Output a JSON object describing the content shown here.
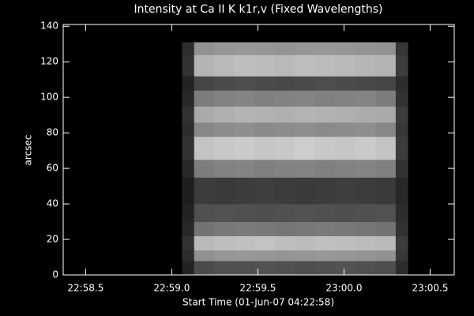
{
  "chart_data": {
    "type": "heatmap",
    "title": "Intensity at Ca II K k1r,v (Fixed Wavelengths)",
    "x_label": "Start Time (01-Jun-07 04:22:58)",
    "y_label": "arcsec",
    "colormap": "gray",
    "vlim": [
      0,
      255
    ],
    "x_edges": [
      1379.06,
      1379.13,
      1379.247,
      1379.364,
      1379.481,
      1379.598,
      1379.715,
      1379.832,
      1379.949,
      1380.066,
      1380.183,
      1380.3,
      1380.37
    ],
    "y_edges": [
      0,
      8,
      14,
      22,
      30,
      40,
      55,
      65,
      78,
      86,
      95,
      104,
      112,
      124,
      131
    ],
    "values": [
      [
        35,
        75,
        80,
        80,
        82,
        80,
        78,
        80,
        82,
        80,
        78,
        45
      ],
      [
        45,
        145,
        150,
        152,
        150,
        148,
        150,
        152,
        150,
        148,
        145,
        55
      ],
      [
        50,
        185,
        190,
        192,
        195,
        190,
        188,
        192,
        190,
        188,
        185,
        60
      ],
      [
        40,
        115,
        120,
        122,
        120,
        118,
        120,
        122,
        120,
        118,
        115,
        50
      ],
      [
        35,
        80,
        82,
        80,
        78,
        80,
        82,
        80,
        78,
        80,
        82,
        45
      ],
      [
        30,
        60,
        58,
        60,
        62,
        60,
        58,
        60,
        62,
        60,
        58,
        40
      ],
      [
        40,
        125,
        130,
        132,
        128,
        130,
        132,
        128,
        130,
        132,
        128,
        50
      ],
      [
        50,
        195,
        200,
        202,
        198,
        200,
        205,
        200,
        198,
        202,
        195,
        60
      ],
      [
        45,
        135,
        140,
        142,
        138,
        140,
        142,
        138,
        140,
        142,
        135,
        55
      ],
      [
        50,
        170,
        175,
        180,
        178,
        175,
        180,
        178,
        175,
        172,
        170,
        60
      ],
      [
        40,
        125,
        130,
        132,
        128,
        130,
        132,
        128,
        130,
        132,
        125,
        50
      ],
      [
        35,
        70,
        75,
        78,
        75,
        72,
        75,
        78,
        75,
        72,
        70,
        45
      ],
      [
        50,
        180,
        185,
        190,
        188,
        185,
        190,
        188,
        185,
        182,
        180,
        60
      ],
      [
        45,
        145,
        150,
        152,
        150,
        148,
        150,
        152,
        150,
        148,
        145,
        55
      ]
    ],
    "xlim": [
      1378.37,
      1380.64
    ],
    "xticks": [
      {
        "value": 1378.5,
        "label": "22:58.5"
      },
      {
        "value": 1379.0,
        "label": "22:59.0"
      },
      {
        "value": 1379.5,
        "label": "22:59.5"
      },
      {
        "value": 1380.0,
        "label": "23:00.0"
      },
      {
        "value": 1380.5,
        "label": "23:00.5"
      }
    ],
    "ylim": [
      0,
      141
    ],
    "yticks": [
      0,
      20,
      40,
      60,
      80,
      100,
      120,
      140
    ]
  }
}
